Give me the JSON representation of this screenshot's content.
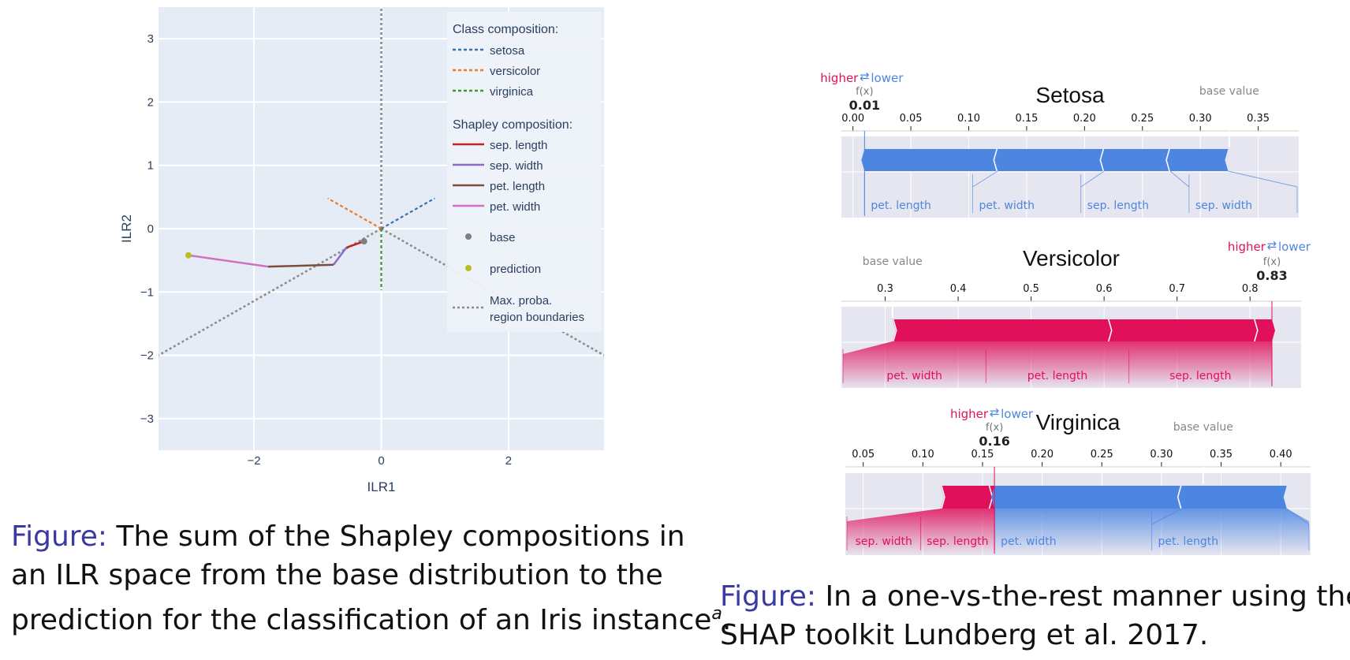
{
  "left_figure": {
    "caption_lead": "Figure:",
    "caption_lines": [
      "The sum of the Shapley compositions in",
      "an ILR space from the base distribution to the",
      "prediction for the classification of an Iris instance"
    ],
    "caption_footnote": "a",
    "caption_end": "."
  },
  "right_figure": {
    "caption_lead": "Figure:",
    "caption_lines": [
      "In a one-vs-the-rest manner using the",
      "SHAP toolkit Lundberg et al. 2017."
    ]
  },
  "colors": {
    "plot_bg": "#e5ecf6",
    "setosa": "#3b70b0",
    "versicolor": "#f07a22",
    "virginica": "#3f9a2c",
    "sep_length": "#c02426",
    "sep_width": "#8c6bc8",
    "pet_length": "#7a4e3e",
    "pet_width": "#d070c0",
    "base": "#7f7f7f",
    "prediction": "#bcbd22",
    "boundary": "#8a8a8a",
    "shap_positive": "#e0105a",
    "shap_negative": "#4d86e0"
  },
  "chart_data": [
    {
      "type": "line",
      "xlabel": "ILR1",
      "ylabel": "ILR2",
      "xlim": [
        -3.5,
        3.5
      ],
      "ylim": [
        -3.5,
        3.5
      ],
      "x_ticks": [
        -2,
        0,
        2
      ],
      "y_ticks": [
        -3,
        -2,
        -1,
        0,
        1,
        2,
        3
      ],
      "x_tick_labels": [
        "−2",
        "0",
        "2"
      ],
      "y_tick_labels": [
        "−3",
        "−2",
        "−1",
        "0",
        "1",
        "2",
        "3"
      ],
      "grid": true,
      "legend_position": "top-right",
      "legend": {
        "class_title": "Class composition:",
        "class_items": [
          "setosa",
          "versicolor",
          "virginica"
        ],
        "shapley_title": "Shapley composition:",
        "shapley_items": [
          "sep. length",
          "sep. width",
          "pet. length",
          "pet. width"
        ],
        "base_label": "base",
        "prediction_label": "prediction",
        "boundary_label_1": "Max. proba.",
        "boundary_label_2": "region boundaries"
      },
      "class_composition": [
        {
          "name": "setosa",
          "x": [
            0,
            0.84
          ],
          "y": [
            0,
            0.48
          ]
        },
        {
          "name": "versicolor",
          "x": [
            0,
            -0.84
          ],
          "y": [
            0,
            0.48
          ]
        },
        {
          "name": "virginica",
          "x": [
            0,
            0
          ],
          "y": [
            0,
            -0.97
          ]
        }
      ],
      "boundaries": [
        {
          "x": [
            0,
            0
          ],
          "y": [
            0,
            3.5
          ]
        },
        {
          "x": [
            0,
            -3.5
          ],
          "y": [
            0,
            -2.0
          ]
        },
        {
          "x": [
            0,
            3.5
          ],
          "y": [
            0,
            -2.0
          ]
        }
      ],
      "shapley_path": [
        {
          "name": "sep. length",
          "x": [
            -0.27,
            -0.55
          ],
          "y": [
            -0.2,
            -0.3
          ]
        },
        {
          "name": "sep. width",
          "x": [
            -0.55,
            -0.75
          ],
          "y": [
            -0.3,
            -0.57
          ]
        },
        {
          "name": "pet. length",
          "x": [
            -0.75,
            -1.78
          ],
          "y": [
            -0.57,
            -0.6
          ]
        },
        {
          "name": "pet. width",
          "x": [
            -1.78,
            -3.03
          ],
          "y": [
            -0.6,
            -0.42
          ]
        }
      ],
      "base": {
        "x": -0.27,
        "y": -0.2
      },
      "prediction": {
        "x": -3.03,
        "y": -0.42
      }
    },
    {
      "type": "bar",
      "title": "Setosa",
      "fx_label": "f(x)",
      "fx_value": 0.01,
      "fx_text": "0.01",
      "base_label": "base value",
      "base_value": 0.325,
      "higher_label": "higher",
      "lower_label": "lower",
      "arrow_symbol": "⇄",
      "xlim": [
        -0.01,
        0.385
      ],
      "ticks": [
        0.0,
        0.05,
        0.1,
        0.15,
        0.2,
        0.25,
        0.3,
        0.35
      ],
      "tick_labels": [
        "0.00",
        "0.05",
        "0.10",
        "0.15",
        "0.20",
        "0.25",
        "0.30",
        "0.35"
      ],
      "positive_segments": [],
      "negative_segments": [
        {
          "name": "pet. length",
          "value": 0.115
        },
        {
          "name": "pet. width",
          "value": 0.092
        },
        {
          "name": "sep. length",
          "value": 0.057
        },
        {
          "name": "sep. width",
          "value": 0.05
        }
      ],
      "positive_labels": [],
      "negative_labels": [
        "pet. length",
        "pet. width",
        "sep. length",
        "sep. width"
      ]
    },
    {
      "type": "bar",
      "title": "Versicolor",
      "fx_label": "f(x)",
      "fx_value": 0.83,
      "fx_text": "0.83",
      "base_label": "base value",
      "base_value": 0.31,
      "higher_label": "higher",
      "lower_label": "lower",
      "arrow_symbol": "⇄",
      "xlim": [
        0.24,
        0.87
      ],
      "ticks": [
        0.3,
        0.4,
        0.5,
        0.6,
        0.7,
        0.8
      ],
      "tick_labels": [
        "0.3",
        "0.4",
        "0.5",
        "0.6",
        "0.7",
        "0.8"
      ],
      "positive_segments": [
        {
          "name": "sep. length",
          "value": 0.025
        },
        {
          "name": "pet. length",
          "value": 0.2
        },
        {
          "name": "pet. width",
          "value": 0.295
        }
      ],
      "negative_segments": [],
      "positive_labels": [
        "sep. length",
        "pet. length",
        "pet. width"
      ],
      "negative_labels": []
    },
    {
      "type": "bar",
      "title": "Virginica",
      "fx_label": "f(x)",
      "fx_value": 0.16,
      "fx_text": "0.16",
      "base_label": "base value",
      "base_value": 0.335,
      "higher_label": "higher",
      "lower_label": "lower",
      "arrow_symbol": "⇄",
      "xlim": [
        0.035,
        0.425
      ],
      "ticks": [
        0.05,
        0.1,
        0.15,
        0.2,
        0.25,
        0.3,
        0.35,
        0.4
      ],
      "tick_labels": [
        "0.05",
        "0.10",
        "0.15",
        "0.20",
        "0.25",
        "0.30",
        "0.35",
        "0.40"
      ],
      "positive_segments": [
        {
          "name": "sep. length",
          "value": 0.005
        },
        {
          "name": "sep. width",
          "value": 0.04
        }
      ],
      "negative_segments": [
        {
          "name": "pet. width",
          "value": 0.157
        },
        {
          "name": "pet. length",
          "value": 0.088
        }
      ],
      "positive_labels": [
        "sep. length",
        "sep. width"
      ],
      "negative_labels": [
        "pet. width",
        "pet. length"
      ]
    }
  ]
}
